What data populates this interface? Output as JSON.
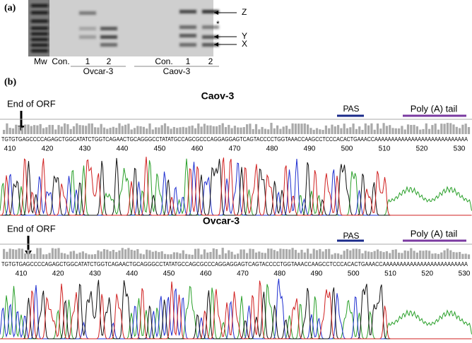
{
  "panel_a": {
    "label": "(a)",
    "mw": "Mw",
    "lanes": [
      "Con.",
      "1",
      "2",
      "Con.",
      "1",
      "2"
    ],
    "groups": [
      "Ovcar-3",
      "Caov-3"
    ],
    "bands": [
      "Z",
      "*",
      "Y",
      "X"
    ]
  },
  "panel_b": {
    "label": "(b)",
    "traces": [
      {
        "title": "Caov-3",
        "end_orf": "End of ORF",
        "pas": "PAS",
        "polya": "Poly (A) tail",
        "sequence": "TGTGTGAGCCCCAGAGCTGGCATATCTGGTCAGAACTGCAGGGCCTATATGCCAGCGCCCAGGAGGAGTCAGTACCCCTGGTAAACCAAGCCTCCCACACTGAAACCAAAAAAAAAAAAAAAAAAAAAAAAAAAA",
        "ticks": [
          410,
          420,
          430,
          440,
          450,
          460,
          470,
          480,
          490,
          500,
          510,
          520,
          530
        ]
      },
      {
        "title": "Ovcar-3",
        "end_orf": "End of ORF",
        "pas": "PAS",
        "polya": "Poly (A) tail",
        "sequence": "TGTGTGAGCCCCAGAGCTGGCATATCTGGTCAGAACTGCAGGGCCTATATGCCAGCGCCCAGGAGGAGTCAGTACCCCTGGTAAACCAAGCCTCCCACACTGAAACCAAAAAAAAAAAAAAAAAAAAAAAAA",
        "ticks": [
          410,
          420,
          430,
          440,
          450,
          460,
          470,
          480,
          490,
          500,
          510,
          520,
          530
        ]
      }
    ]
  }
}
